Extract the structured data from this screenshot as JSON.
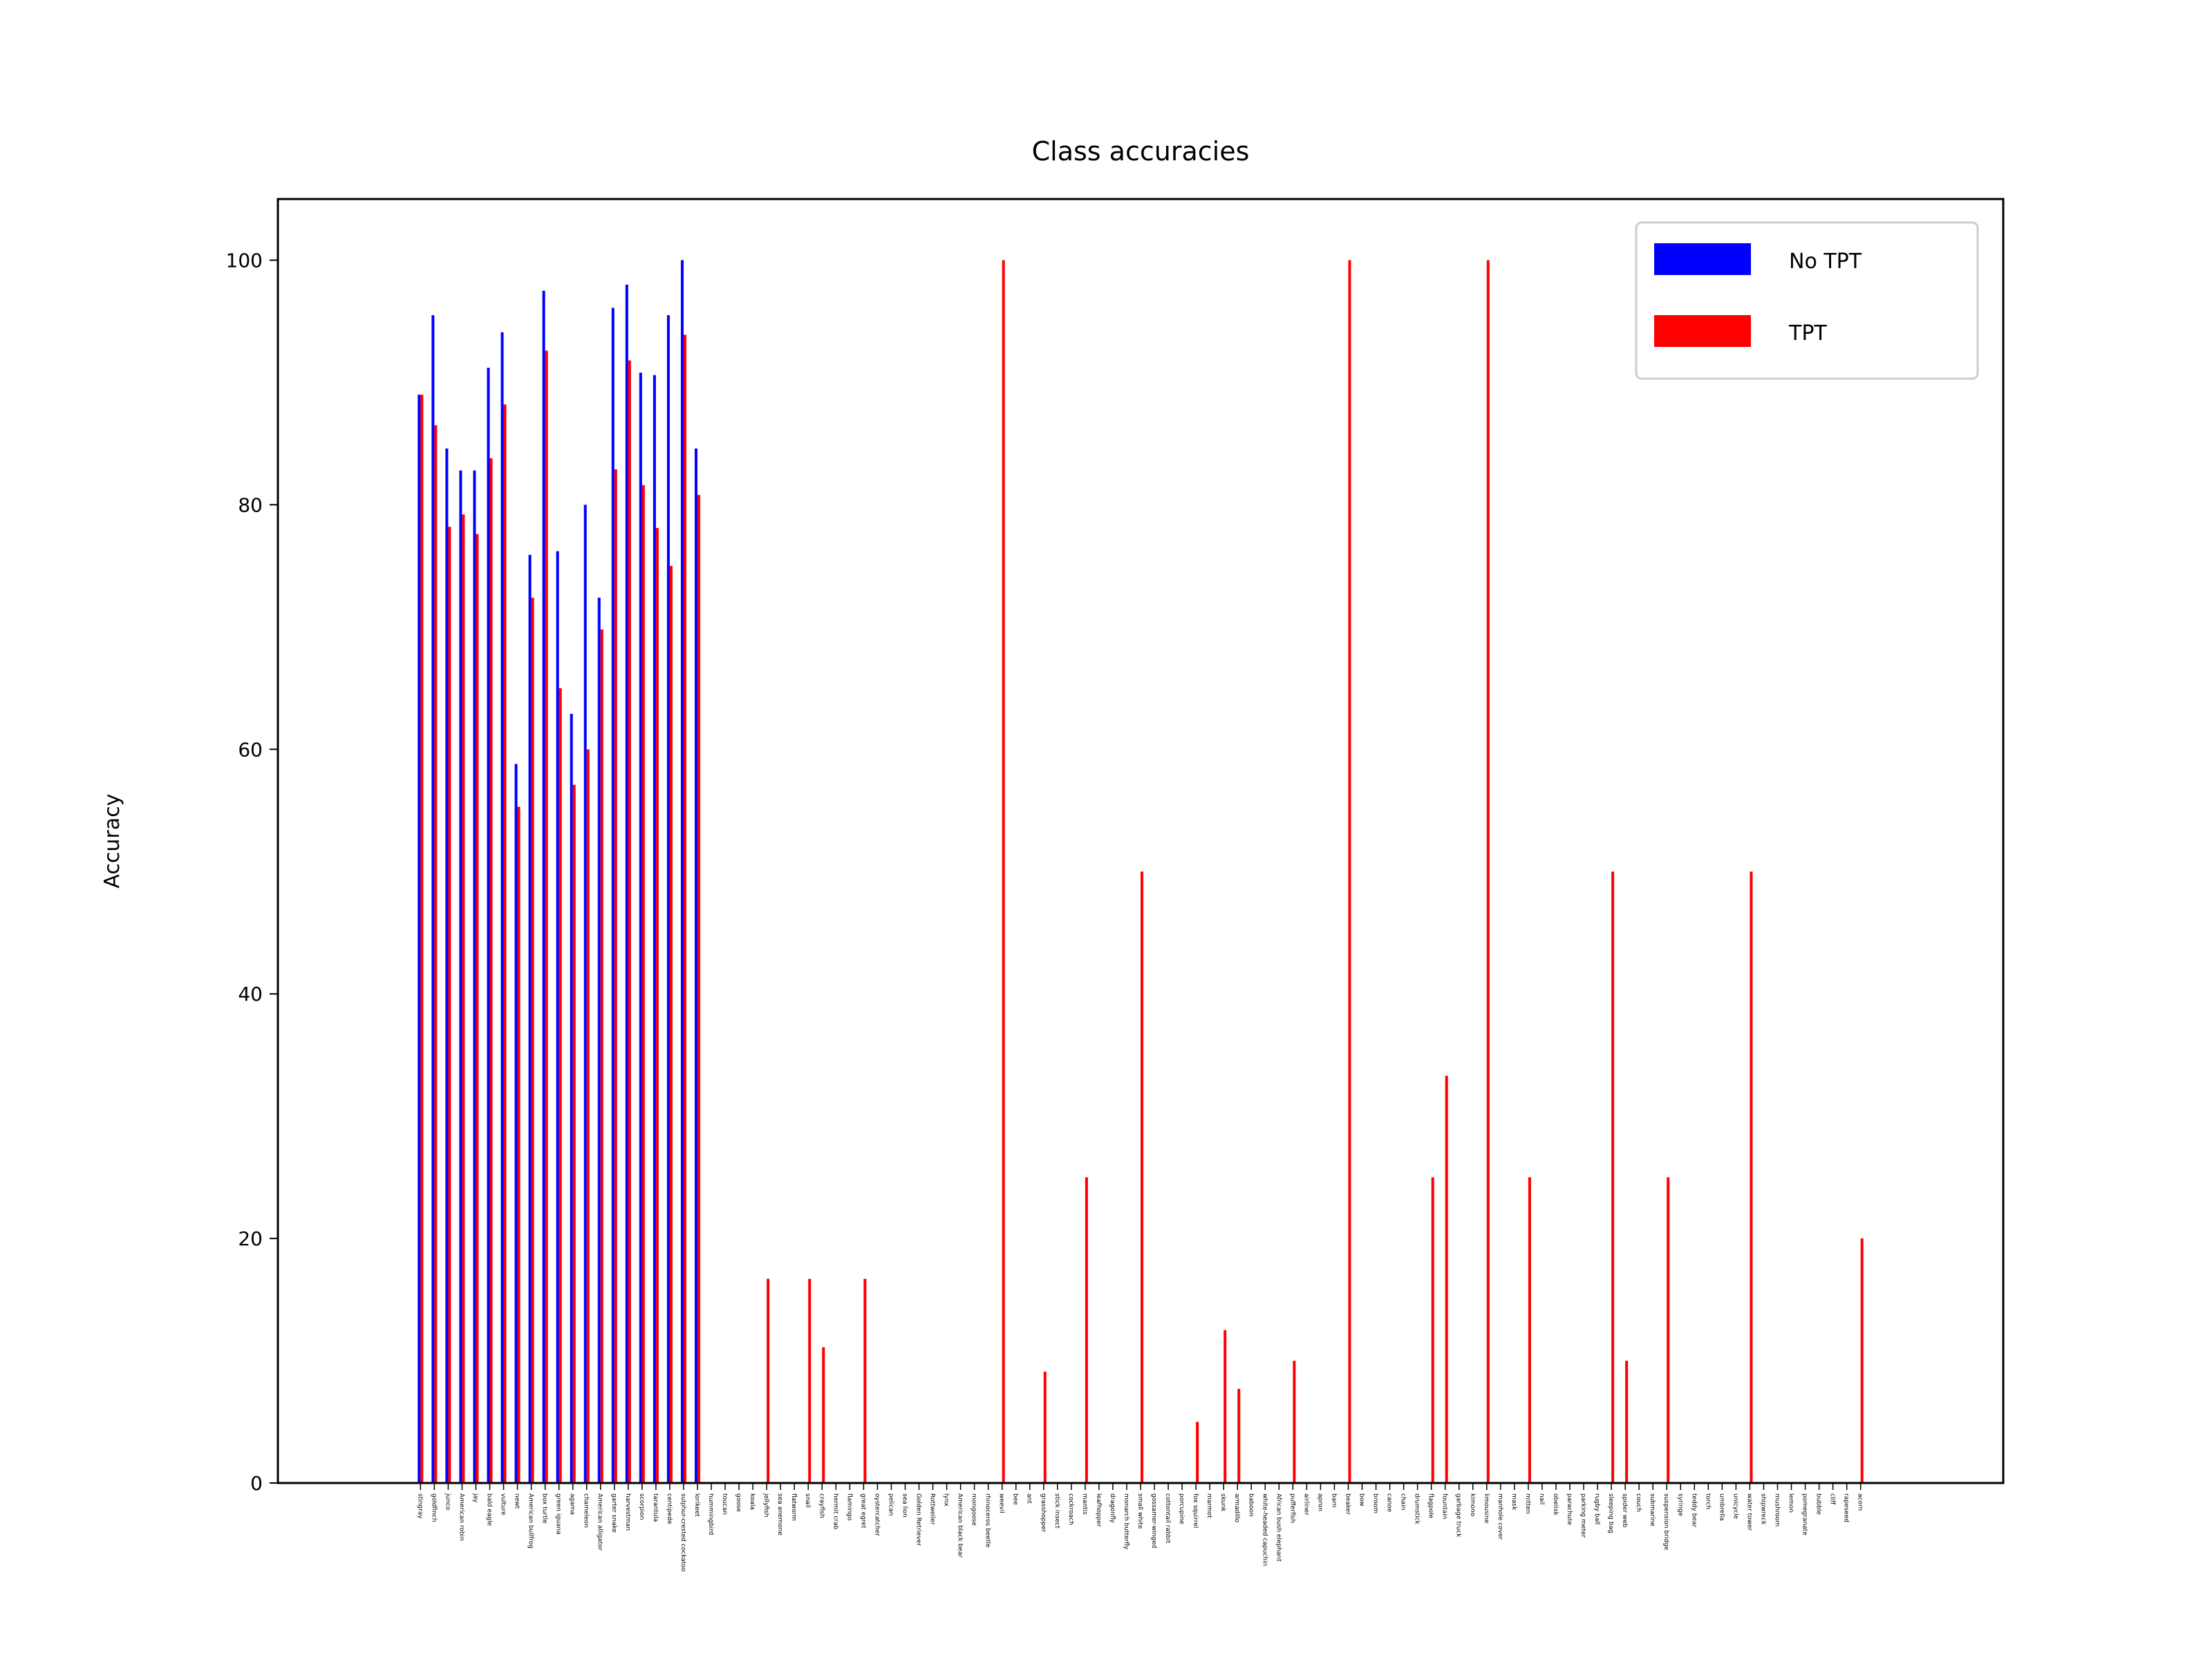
{
  "chart_data": {
    "type": "bar",
    "title": "Class accuracies",
    "xlabel": "",
    "ylabel": "Accuracy",
    "ylim": [
      0,
      105
    ],
    "yticks": [
      0,
      20,
      40,
      60,
      80,
      100
    ],
    "legend_position": "top-right",
    "grid": false,
    "colors": {
      "No TPT": "#0000ff",
      "TPT": "#ff0000"
    },
    "categories": [
      "stingray",
      "goldfinch",
      "junco",
      "American robin",
      "jay",
      "bald eagle",
      "vulture",
      "newt",
      "American bullfrog",
      "box turtle",
      "green iguana",
      "agama",
      "chameleon",
      "American alligator",
      "garter snake",
      "harvestman",
      "scorpion",
      "tarantula",
      "centipede",
      "sulphur-crested cockatoo",
      "lorikeet",
      "hummingbird",
      "toucan",
      "goose",
      "koala",
      "jellyfish",
      "sea anemone",
      "flatworm",
      "snail",
      "crayfish",
      "hermit crab",
      "flamingo",
      "great egret",
      "oystercatcher",
      "pelican",
      "sea lion",
      "Golden Retriever",
      "Rottweiler",
      "lynx",
      "American black bear",
      "mongoose",
      "rhinoceros beetle",
      "weevil",
      "bee",
      "ant",
      "grasshopper",
      "stick insect",
      "cockroach",
      "mantis",
      "leafhopper",
      "dragonfly",
      "monarch butterfly",
      "small white",
      "gossamer-winged",
      "cottontail rabbit",
      "porcupine",
      "fox squirrel",
      "marmot",
      "skunk",
      "armadillo",
      "baboon",
      "white-headed capuchin",
      "African bush elephant",
      "pufferfish",
      "airliner",
      "apron",
      "barn",
      "beaker",
      "bow",
      "broom",
      "canoe",
      "chain",
      "drumstick",
      "flagpole",
      "fountain",
      "garbage truck",
      "kimono",
      "limousine",
      "manhole cover",
      "mask",
      "mitten",
      "nail",
      "obelisk",
      "parachute",
      "parking meter",
      "rugby ball",
      "sleeping bag",
      "spider web",
      "couch",
      "submarine",
      "suspension bridge",
      "syringe",
      "teddy bear",
      "torch",
      "umbrella",
      "unicycle",
      "water tower",
      "shipwreck",
      "mushroom",
      "lemon",
      "pomegranate",
      "bubble",
      "cliff",
      "rapeseed",
      "acorn"
    ],
    "series": [
      {
        "name": "No TPT",
        "values": [
          89,
          95.5,
          84.6,
          82.8,
          82.8,
          91.2,
          94.1,
          58.8,
          75.9,
          97.5,
          76.2,
          62.9,
          80,
          72.4,
          96.1,
          98,
          90.8,
          90.6,
          95.5,
          100,
          84.6,
          0,
          0,
          0,
          0,
          0,
          0,
          0,
          0,
          0,
          0,
          0,
          0,
          0,
          0,
          0,
          0,
          0,
          0,
          0,
          0,
          0,
          0,
          0,
          0,
          0,
          0,
          0,
          0,
          0,
          0,
          0,
          0,
          0,
          0,
          0,
          0,
          0,
          0,
          0,
          0,
          0,
          0,
          0,
          0,
          0,
          0,
          0,
          0,
          0,
          0,
          0,
          0,
          0,
          0,
          0,
          0,
          0,
          0,
          0,
          0,
          0,
          0,
          0,
          0,
          0,
          0,
          0,
          0,
          0,
          0,
          0,
          0,
          0,
          0,
          0,
          0,
          0,
          0,
          0,
          0,
          0,
          0,
          0,
          0
        ]
      },
      {
        "name": "TPT",
        "values": [
          89,
          86.5,
          78.2,
          79.2,
          77.6,
          83.8,
          88.2,
          55.3,
          72.4,
          92.6,
          65,
          57.1,
          60,
          69.8,
          82.9,
          91.8,
          81.6,
          78.1,
          75,
          93.9,
          80.8,
          0,
          0,
          0,
          0,
          16.7,
          0,
          0,
          16.7,
          11.1,
          0,
          0,
          16.7,
          0,
          0,
          0,
          0,
          0,
          0,
          0,
          0,
          0,
          100,
          0,
          0,
          9.1,
          0,
          0,
          25,
          0,
          0,
          0,
          50,
          0,
          0,
          0,
          5,
          0,
          12.5,
          7.7,
          0,
          0,
          0,
          10,
          0,
          0,
          0,
          100,
          0,
          0,
          0,
          0,
          0,
          25,
          33.3,
          0,
          0,
          100,
          0,
          0,
          25,
          0,
          0,
          0,
          0,
          0,
          50,
          10,
          0,
          0,
          25,
          0,
          0,
          0,
          0,
          0,
          50,
          0,
          0,
          0,
          0,
          0,
          0,
          0,
          20
        ]
      }
    ]
  }
}
